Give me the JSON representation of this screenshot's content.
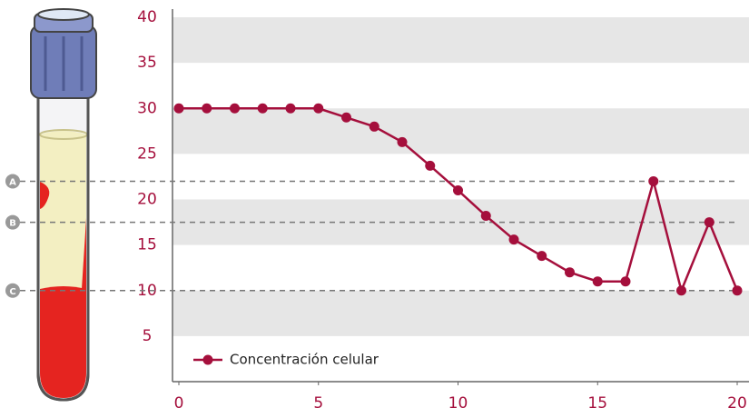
{
  "chart_data": {
    "type": "line",
    "x": [
      0,
      1,
      2,
      3,
      4,
      5,
      6,
      7,
      8,
      9,
      10,
      11,
      12,
      13,
      14,
      15,
      16,
      17,
      18,
      19,
      20
    ],
    "series": [
      {
        "name": "Concentración celular",
        "color": "#a50f3c",
        "values": [
          30,
          30,
          30,
          30,
          30,
          30,
          29,
          28,
          26.3,
          23.7,
          21,
          18.2,
          15.6,
          13.8,
          12,
          11,
          11,
          22,
          10,
          17.5,
          10
        ]
      }
    ],
    "xlim": [
      0,
      20
    ],
    "xticks": [
      0,
      5,
      10,
      15,
      20
    ],
    "ylim": [
      0,
      40
    ],
    "yticks": [
      5,
      10,
      15,
      20,
      25,
      30,
      35,
      40
    ],
    "grid": "bands",
    "reference_lines": [
      {
        "label": "A",
        "value": 22
      },
      {
        "label": "B",
        "value": 17.5
      },
      {
        "label": "C",
        "value": 10
      }
    ],
    "legend": "lower left"
  }
}
